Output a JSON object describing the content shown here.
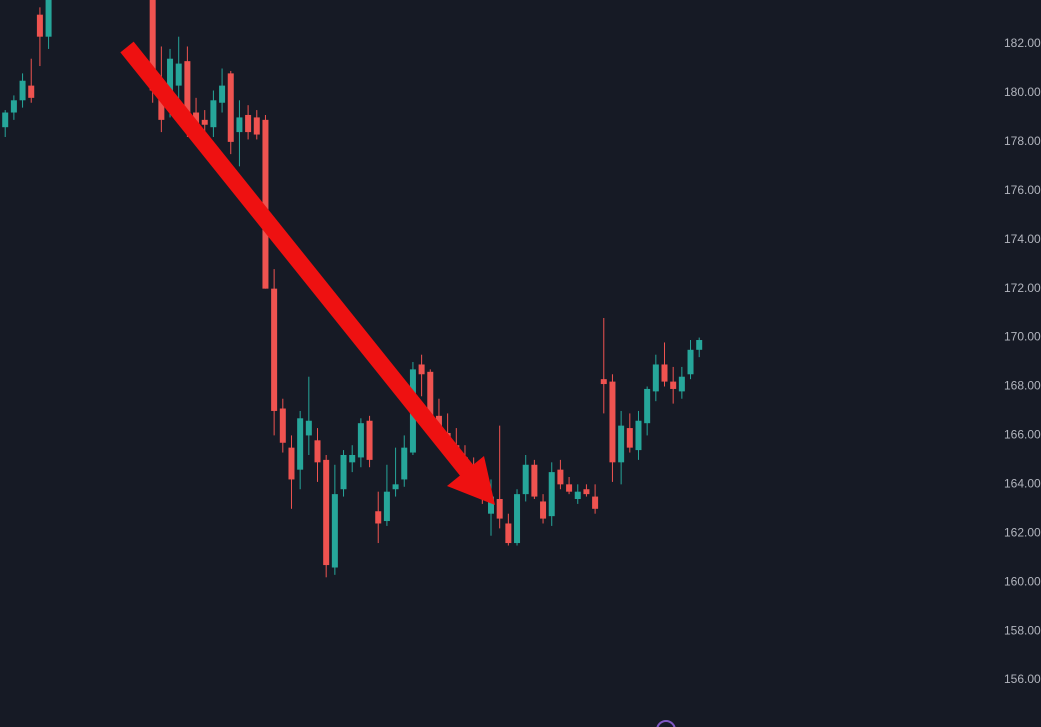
{
  "chart_data": {
    "type": "candlestick",
    "x": [
      0,
      1,
      2,
      3,
      4,
      5,
      17,
      18,
      19,
      20,
      21,
      22,
      23,
      24,
      25,
      26,
      27,
      28,
      29,
      30,
      31,
      32,
      33,
      34,
      35,
      36,
      37,
      38,
      39,
      40,
      41,
      42,
      43,
      44,
      45,
      46,
      47,
      48,
      49,
      50,
      51,
      52,
      53,
      54,
      55,
      56,
      57,
      58,
      59,
      60,
      61,
      62,
      63,
      64,
      65,
      66,
      67,
      68,
      69,
      70,
      71,
      72,
      73,
      74,
      75,
      76,
      77,
      78,
      79,
      80
    ],
    "open": [
      178.6,
      179.2,
      179.7,
      180.3,
      183.2,
      182.3,
      184,
      179.9,
      179.3,
      180.3,
      181.3,
      179.2,
      178.9,
      178.6,
      179.6,
      180.8,
      178.4,
      179.1,
      179.0,
      178.9,
      172.0,
      167.1,
      165.5,
      164.6,
      166.0,
      165.8,
      165.0,
      160.6,
      163.8,
      164.9,
      165.1,
      166.6,
      162.9,
      162.5,
      163.8,
      164.2,
      165.3,
      168.9,
      168.6,
      166.8,
      166.1,
      165.6,
      165.1,
      164.7,
      164.3,
      162.8,
      163.4,
      162.4,
      161.6,
      163.6,
      164.8,
      163.3,
      162.7,
      164.6,
      164.0,
      163.4,
      163.8,
      163.5,
      168.3,
      168.2,
      164.9,
      166.3,
      165.4,
      166.5,
      167.8,
      168.9,
      168.2,
      167.8,
      168.5,
      169.5
    ],
    "high": [
      179.3,
      179.9,
      180.8,
      181.4,
      183.5,
      184,
      184.5,
      181.9,
      181.8,
      182.3,
      181.9,
      179.8,
      179.3,
      180.1,
      181.0,
      180.9,
      179.7,
      179.5,
      179.3,
      179.1,
      172.8,
      167.5,
      166.0,
      167.0,
      168.4,
      166.3,
      165.2,
      164.8,
      165.4,
      165.6,
      166.7,
      166.8,
      163.7,
      164.8,
      165.5,
      166.0,
      169.0,
      169.3,
      168.7,
      167.5,
      166.9,
      166.3,
      165.6,
      165.1,
      164.8,
      164.2,
      166.4,
      162.8,
      163.8,
      165.2,
      165.0,
      163.6,
      164.9,
      165.0,
      164.3,
      164.0,
      164.0,
      164.0,
      170.8,
      168.5,
      167.0,
      166.9,
      167.0,
      168.0,
      169.3,
      169.8,
      168.8,
      168.8,
      169.9,
      170.0
    ],
    "low": [
      178.2,
      178.9,
      179.4,
      179.6,
      181.1,
      181.8,
      179.6,
      178.4,
      179.0,
      179.5,
      178.2,
      178.0,
      178.2,
      178.2,
      179.2,
      177.5,
      177.0,
      178.1,
      178.1,
      172.0,
      166.0,
      165.3,
      163.0,
      163.8,
      165.2,
      164.1,
      160.2,
      160.3,
      163.5,
      164.5,
      164.7,
      164.7,
      161.6,
      162.3,
      163.5,
      163.9,
      165.2,
      167.6,
      166.4,
      166.1,
      165.5,
      164.8,
      164.4,
      163.9,
      163.2,
      161.9,
      162.2,
      161.5,
      161.5,
      163.3,
      163.4,
      162.4,
      162.3,
      163.8,
      163.6,
      163.2,
      163.5,
      162.8,
      166.9,
      164.1,
      164.0,
      165.3,
      165.0,
      166.0,
      167.4,
      168.0,
      167.3,
      167.5,
      168.3,
      169.2
    ],
    "close": [
      179.2,
      179.7,
      180.5,
      179.8,
      182.3,
      183.8,
      180.1,
      178.9,
      181.4,
      181.2,
      179.1,
      178.5,
      178.7,
      179.7,
      180.3,
      178.0,
      179.0,
      178.4,
      178.3,
      172.0,
      167.0,
      165.7,
      164.2,
      166.7,
      166.6,
      164.9,
      160.7,
      163.6,
      165.2,
      165.2,
      166.5,
      165.0,
      162.4,
      163.7,
      164.0,
      165.5,
      168.7,
      168.5,
      166.6,
      166.3,
      165.8,
      165.0,
      164.7,
      164.1,
      163.6,
      163.5,
      162.6,
      161.6,
      163.6,
      164.8,
      163.5,
      162.6,
      164.5,
      164.0,
      163.7,
      163.7,
      163.6,
      163.0,
      168.1,
      164.9,
      166.4,
      165.5,
      166.6,
      167.9,
      168.9,
      168.2,
      167.9,
      168.4,
      169.5,
      169.9
    ],
    "up_color": "#26a69a",
    "down_color": "#ef5350",
    "xlim": [
      -0.6,
      119.4
    ],
    "ylim": [
      154.08,
      183.8
    ],
    "yticks": [
      {
        "value": 156,
        "label": "156.00"
      },
      {
        "value": 158,
        "label": "158.00"
      },
      {
        "value": 160,
        "label": "160.00"
      },
      {
        "value": 162,
        "label": "162.00"
      },
      {
        "value": 164,
        "label": "164.00"
      },
      {
        "value": 166,
        "label": "166.00"
      },
      {
        "value": 168,
        "label": "168.00"
      },
      {
        "value": 170,
        "label": "170.00"
      },
      {
        "value": 172,
        "label": "172.00"
      },
      {
        "value": 174,
        "label": "174.00"
      },
      {
        "value": 176,
        "label": "176.00"
      },
      {
        "value": 178,
        "label": "178.00"
      },
      {
        "value": 180,
        "label": "180.00"
      },
      {
        "value": 182,
        "label": "182.00"
      }
    ]
  }
}
